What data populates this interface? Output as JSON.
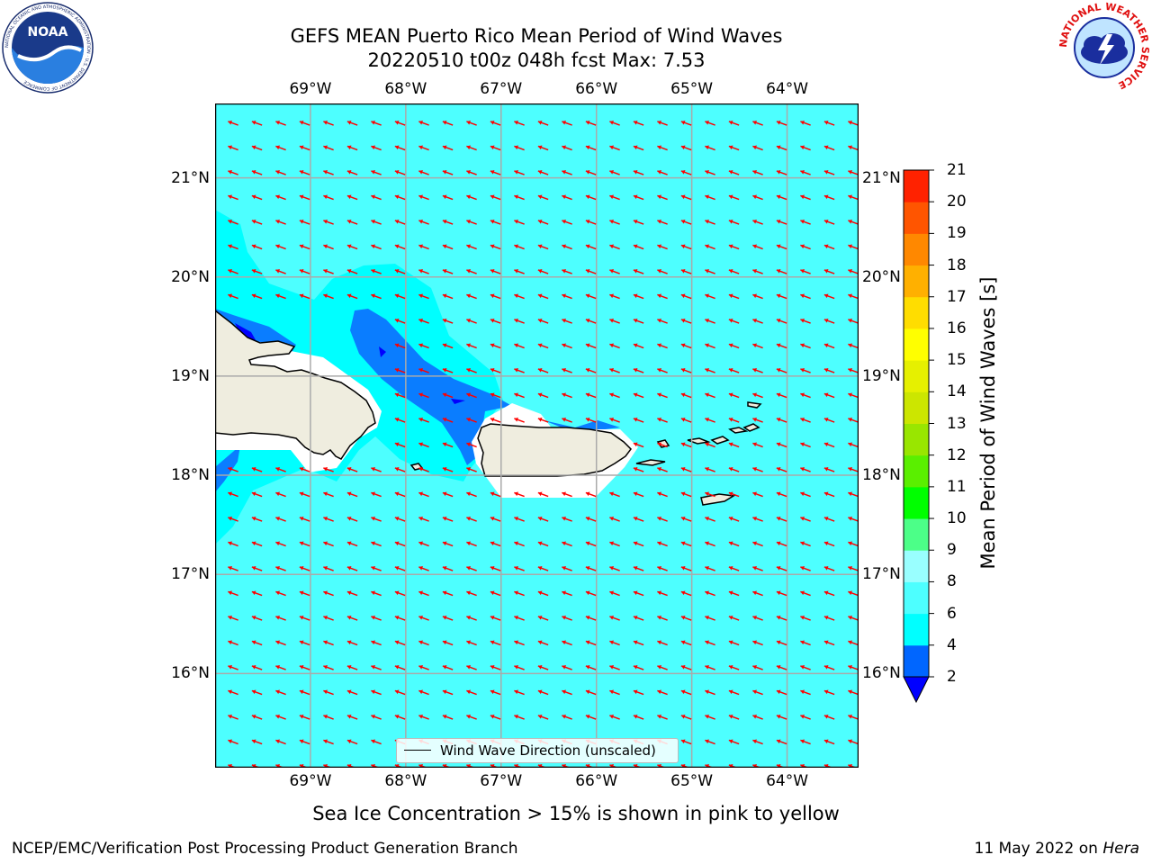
{
  "header": {
    "title_line1": "GEFS MEAN Puerto Rico Mean Period of Wind Waves",
    "title_line2": "20220510 t00z 048h fcst   Max: 7.53"
  },
  "logos": {
    "noaa_text": "NOAA",
    "noaa_ring_text": "NATIONAL OCEANIC AND ATMOSPHERIC ADMINISTRATION · U.S. DEPARTMENT OF COMMERCE",
    "nws_ring_text": "NATIONAL WEATHER SERVICE"
  },
  "map": {
    "lon_range": [
      -70.0,
      -63.25
    ],
    "lat_range": [
      15.05,
      21.75
    ],
    "lon_ticks": [
      "69°W",
      "68°W",
      "67°W",
      "66°W",
      "65°W",
      "64°W"
    ],
    "lon_tick_values": [
      -69,
      -68,
      -67,
      -66,
      -65,
      -64
    ],
    "lat_ticks": [
      "21°N",
      "20°N",
      "19°N",
      "18°N",
      "17°N",
      "16°N"
    ],
    "lat_tick_values": [
      21,
      20,
      19,
      18,
      17,
      16
    ],
    "ocean_color": "#4dffff",
    "land_color": "#efeddf",
    "arrow_color": "#ff0000",
    "grid": true,
    "legend_label": "Wind Wave Direction (unscaled)"
  },
  "colorbar": {
    "label": "Mean Period of Wind Waves [s]",
    "tick_labels": [
      "2",
      "4",
      "6",
      "8",
      "9",
      "10",
      "11",
      "12",
      "13",
      "14",
      "15",
      "16",
      "17",
      "18",
      "19",
      "20",
      "21"
    ],
    "levels": [
      2,
      4,
      6,
      8,
      9,
      10,
      11,
      12,
      13,
      14,
      15,
      16,
      17,
      18,
      19,
      20,
      21
    ],
    "colors": [
      "#0066ff",
      "#00ffff",
      "#4dffff",
      "#99ffff",
      "#4cff88",
      "#00ff00",
      "#5aef00",
      "#99e600",
      "#cce600",
      "#e6f000",
      "#ffff00",
      "#ffdd00",
      "#ffb000",
      "#ff8800",
      "#ff5500",
      "#ff2200",
      "#ff0000"
    ],
    "under_color": "#0000ff"
  },
  "chart_data": {
    "type": "heatmap",
    "title": "GEFS MEAN Puerto Rico Mean Period of Wind Waves",
    "subtitle": "20220510 t00z 048h fcst   Max: 7.53",
    "x_ticks": [
      "69°W",
      "68°W",
      "67°W",
      "66°W",
      "65°W",
      "64°W"
    ],
    "y_ticks": [
      "21°N",
      "20°N",
      "19°N",
      "18°N",
      "17°N",
      "16°N"
    ],
    "colorbar_label": "Mean Period of Wind Waves [s]",
    "max": 7.53,
    "legend": "Wind Wave Direction (unscaled)"
  },
  "footer": {
    "note": "Sea Ice Concentration > 15% is shown in pink to yellow",
    "branch": "NCEP/EMC/Verification Post Processing Product Generation Branch",
    "date": "11 May 2022 on ",
    "host": "Hera"
  }
}
